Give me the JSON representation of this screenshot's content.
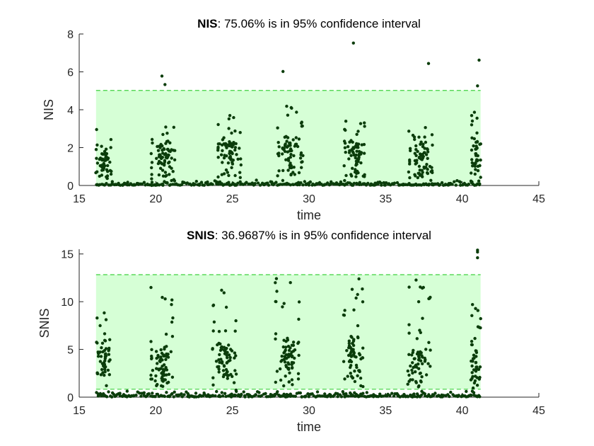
{
  "chart_data": [
    {
      "type": "scatter",
      "title_bold": "NIS",
      "title_rest": ": 75.06% is in 95% confidence interval",
      "xlabel": "time",
      "ylabel": "NIS",
      "xlim": [
        15,
        45
      ],
      "ylim": [
        0,
        8
      ],
      "xticks": [
        "15",
        "20",
        "25",
        "30",
        "35",
        "40",
        "45"
      ],
      "yticks": [
        "0",
        "2",
        "4",
        "6",
        "8"
      ],
      "band": {
        "lower": 0,
        "upper": 5.02,
        "x_start": 16.1,
        "x_end": 41.2,
        "fill": "#d6ffd6",
        "line": "#3fd13f"
      },
      "marker_color": "#0b3d0b",
      "clusters": [
        {
          "center": 16.6,
          "spread": 0.55,
          "count": 42,
          "mid": 1.2,
          "high": 3.2
        },
        {
          "center": 20.5,
          "spread": 0.85,
          "count": 62,
          "mid": 1.4,
          "high": 3.6
        },
        {
          "center": 24.8,
          "spread": 0.85,
          "count": 62,
          "mid": 1.5,
          "high": 3.8
        },
        {
          "center": 28.8,
          "spread": 0.9,
          "count": 62,
          "mid": 1.5,
          "high": 4.3
        },
        {
          "center": 33.0,
          "spread": 0.75,
          "count": 58,
          "mid": 1.4,
          "high": 4.0
        },
        {
          "center": 37.3,
          "spread": 0.85,
          "count": 58,
          "mid": 1.3,
          "high": 3.1
        },
        {
          "center": 40.9,
          "spread": 0.35,
          "count": 34,
          "mid": 1.4,
          "high": 3.9
        }
      ],
      "outliers": [
        {
          "x": 20.4,
          "y": 5.78
        },
        {
          "x": 20.6,
          "y": 5.33
        },
        {
          "x": 28.3,
          "y": 6.02
        },
        {
          "x": 32.9,
          "y": 7.52
        },
        {
          "x": 37.8,
          "y": 6.44
        },
        {
          "x": 41.1,
          "y": 6.62
        },
        {
          "x": 41.0,
          "y": 5.26
        }
      ],
      "seed": 11
    },
    {
      "type": "scatter",
      "title_bold": "SNIS",
      "title_rest": ": 36.9687% is in 95% confidence interval",
      "xlabel": "time",
      "ylabel": "SNIS",
      "xlim": [
        15,
        45
      ],
      "ylim": [
        0,
        15.5
      ],
      "xticks": [
        "15",
        "20",
        "25",
        "30",
        "35",
        "40",
        "45"
      ],
      "yticks": [
        "0",
        "5",
        "10",
        "15"
      ],
      "ytick_values": [
        0,
        5,
        10,
        15
      ],
      "band": {
        "lower": 0.83,
        "upper": 12.83,
        "x_start": 16.1,
        "x_end": 41.2,
        "fill": "#d6ffd6",
        "line": "#3fd13f"
      },
      "marker_color": "#0b3d0b",
      "clusters": [
        {
          "center": 16.6,
          "spread": 0.5,
          "count": 40,
          "mid": 3.5,
          "high": 9.6
        },
        {
          "center": 20.4,
          "spread": 0.8,
          "count": 62,
          "mid": 3.2,
          "high": 12.7
        },
        {
          "center": 24.5,
          "spread": 0.85,
          "count": 62,
          "mid": 3.4,
          "high": 12.9
        },
        {
          "center": 28.6,
          "spread": 0.85,
          "count": 62,
          "mid": 3.6,
          "high": 13.1
        },
        {
          "center": 32.9,
          "spread": 0.7,
          "count": 60,
          "mid": 3.8,
          "high": 13.0
        },
        {
          "center": 37.2,
          "spread": 0.8,
          "count": 58,
          "mid": 3.2,
          "high": 12.8
        },
        {
          "center": 40.9,
          "spread": 0.35,
          "count": 32,
          "mid": 3.0,
          "high": 10.5
        }
      ],
      "outliers": [
        {
          "x": 41.0,
          "y": 15.2
        },
        {
          "x": 41.0,
          "y": 14.6
        },
        {
          "x": 41.0,
          "y": 15.4
        }
      ],
      "seed": 29
    }
  ]
}
